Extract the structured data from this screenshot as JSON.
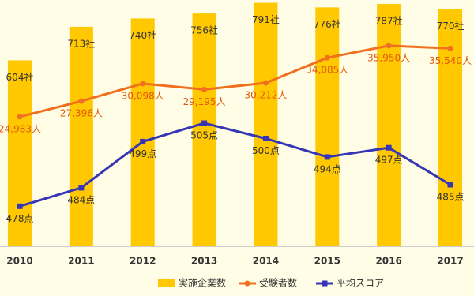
{
  "chart_data": {
    "type": "combo",
    "categories": [
      "2010",
      "2011",
      "2012",
      "2013",
      "2014",
      "2015",
      "2016",
      "2017"
    ],
    "series": [
      {
        "name": "実施企業数",
        "type": "bar",
        "color": "#ffc800",
        "axis": "y",
        "values": [
          604,
          713,
          740,
          756,
          791,
          776,
          787,
          770
        ],
        "value_labels": [
          "604社",
          "713社",
          "740社",
          "756社",
          "791社",
          "776社",
          "787社",
          "770社"
        ]
      },
      {
        "name": "受験者数",
        "type": "line",
        "color": "#f07020",
        "axis": "y2",
        "values": [
          24983,
          27396,
          30098,
          29195,
          30212,
          34085,
          35950,
          35540
        ],
        "value_labels": [
          "24,983人",
          "27,396人",
          "30,098人",
          "29,195人",
          "30,212人",
          "34,085人",
          "35,950人",
          "35,540人"
        ]
      },
      {
        "name": "平均スコア",
        "type": "line",
        "color": "#3535b5",
        "axis": "y3",
        "values": [
          478,
          484,
          499,
          505,
          500,
          494,
          497,
          485
        ],
        "value_labels": [
          "478点",
          "484点",
          "499点",
          "505点",
          "500点",
          "494点",
          "497点",
          "485点"
        ]
      }
    ],
    "ylim": [
      0,
      800
    ],
    "y2lim": [
      5000,
      43000
    ],
    "y3lim": [
      465,
      545
    ],
    "legend": "bottom"
  }
}
